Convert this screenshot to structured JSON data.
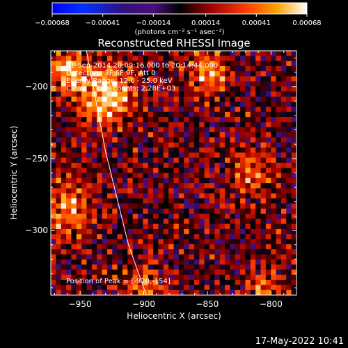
{
  "colorbar": {
    "tick_labels": [
      "-0.00068",
      "-0.00041",
      "-0.00014",
      "0.00014",
      "0.00041",
      "0.00068"
    ],
    "units": "(photons cm⁻² s⁻¹ asec⁻²)",
    "range": [
      -0.00068,
      0.00068
    ]
  },
  "chart_data": {
    "type": "heatmap",
    "title": "Reconstructed RHESSI Image",
    "xlabel": "Heliocentric X (arcsec)",
    "ylabel": "Heliocentric Y (arcsec)",
    "xlim": [
      -973,
      -780
    ],
    "ylim": [
      -345,
      -175
    ],
    "x_ticks": [
      -950,
      -900,
      -850,
      -800
    ],
    "y_ticks": [
      -200,
      -250,
      -300
    ],
    "x_tick_labels": [
      "−950",
      "−900",
      "−850",
      "−800"
    ],
    "y_tick_labels": [
      "−200",
      "−250",
      "−300"
    ],
    "peak": [
      -920,
      -154
    ],
    "limb_curve": [
      [
        -945,
        -175
      ],
      [
        -930,
        -245
      ],
      [
        -912,
        -310
      ],
      [
        -898,
        -345
      ]
    ],
    "annotations": [
      "21-Sep-2014 20:09:16.000 to 20:14:44.000",
      "Detectors: 3F 6F 9F, Att 0",
      "Energy Range: 12.0 - 25.0 keV",
      "Clean    Total counts: 2.28E+03",
      "Position of Peak = [-920,-154]"
    ],
    "sources": [
      {
        "x": -930,
        "y": -205,
        "amp": 1.0,
        "sigma": 14
      },
      {
        "x": -960,
        "y": -190,
        "amp": 0.75,
        "sigma": 10
      },
      {
        "x": -960,
        "y": -285,
        "amp": 0.6,
        "sigma": 14
      },
      {
        "x": -850,
        "y": -190,
        "amp": 0.7,
        "sigma": 10
      },
      {
        "x": -815,
        "y": -260,
        "amp": 0.45,
        "sigma": 13
      },
      {
        "x": -805,
        "y": -340,
        "amp": 0.55,
        "sigma": 10
      },
      {
        "x": -900,
        "y": -340,
        "amp": 0.5,
        "sigma": 12
      }
    ]
  },
  "footer": {
    "timestamp": "17-May-2022 10:41"
  }
}
